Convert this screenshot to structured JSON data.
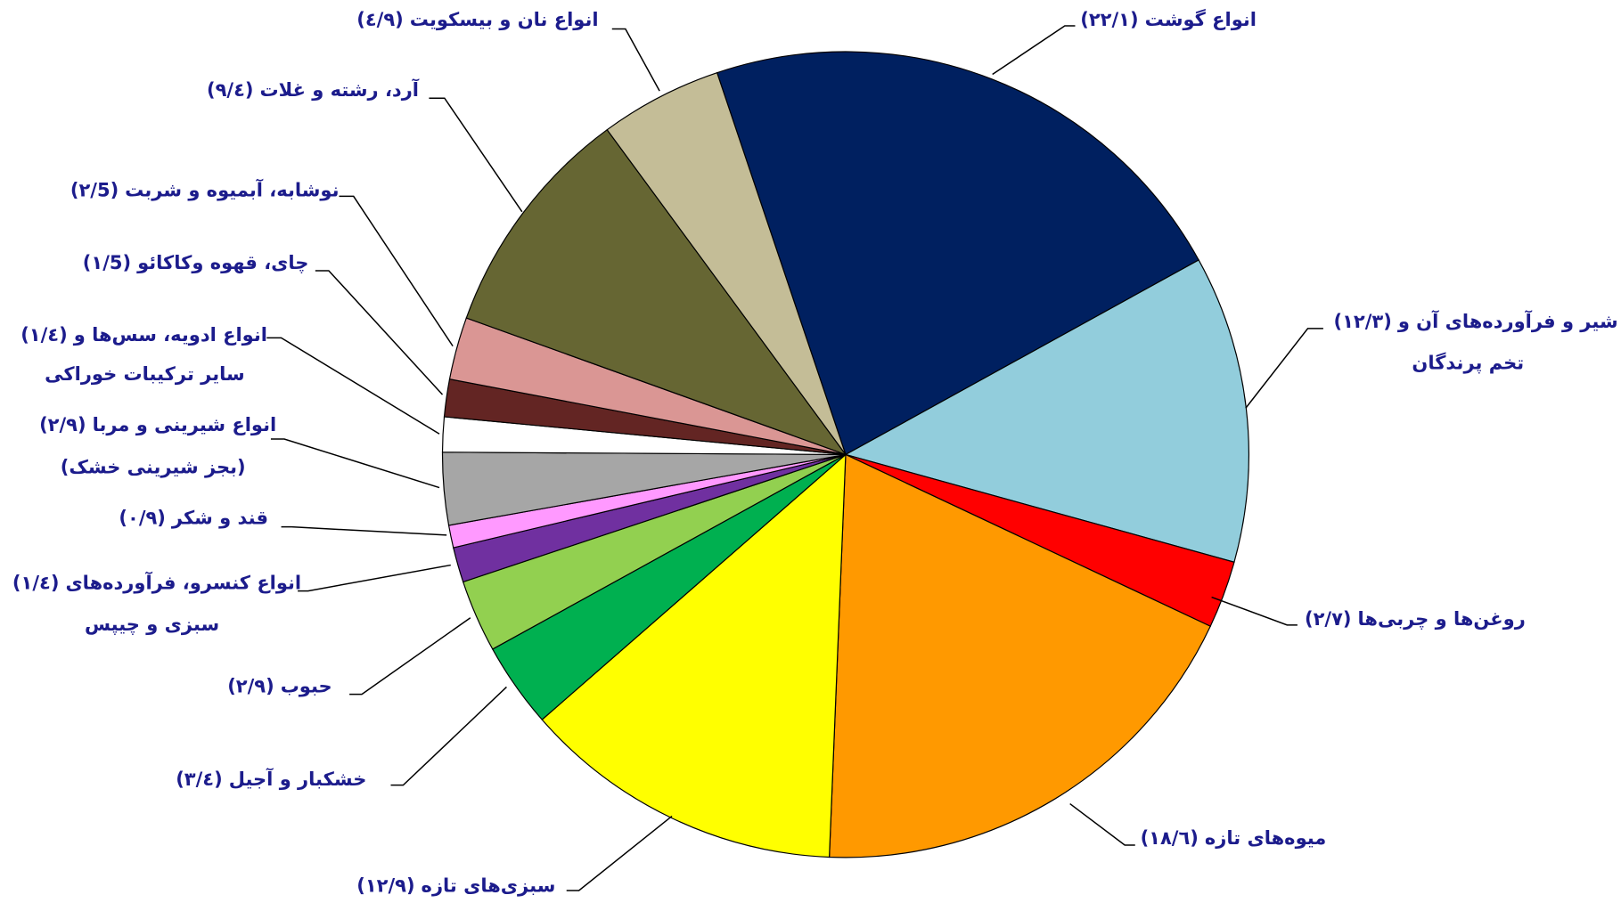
{
  "chart_data": {
    "type": "pie",
    "categories": [
      "انواع گوشت",
      [
        "شیر و فرآورده‌های آن و",
        "تخم پرندگان"
      ],
      "روغن‌ها و چربی‌ها",
      "میوه‌های تازه",
      "سبزی‌های تازه",
      "خشکبار و آجیل",
      "حبوب",
      [
        "انواع کنسرو، فرآورده‌های",
        "سبزی و چیپس"
      ],
      "قند و شکر",
      [
        "انواع شیرینی و مربا",
        "(بجز شیرینی خشک)"
      ],
      [
        "انواع ادویه، سس‌ها و",
        "سایر ترکیبات خوراکی"
      ],
      "چای، قهوه وکاکائو",
      "نوشابه، آبمیوه و شربت",
      "آرد، رشته و غلات",
      "انواع نان و بیسکویت"
    ],
    "values": [
      22.1,
      12.3,
      2.7,
      18.6,
      12.9,
      3.4,
      2.9,
      1.4,
      0.9,
      2.9,
      1.4,
      1.5,
      2.5,
      9.4,
      4.9
    ],
    "value_labels": [
      "(۲۲/۱)",
      "(۱۲/۳)",
      "(۲/۷)",
      "(۱۸/٦)",
      "(۱۲/۹)",
      "(۳/٤)",
      "(۲/۹)",
      "(۱/٤)",
      "(۰/۹)",
      "(۲/۹)",
      "(۱/٤)",
      "(۱/5)",
      "(۲/5)",
      "(۹/٤)",
      "(٤/۹)"
    ],
    "colors": [
      "#002060",
      "#92cddc",
      "#ff0000",
      "#ff9900",
      "#ffff00",
      "#00b050",
      "#92d050",
      "#7030a0",
      "#ff99ff",
      "#a6a6a6",
      "#ffffff",
      "#632523",
      "#da9694",
      "#666633",
      "#c4bd97"
    ]
  }
}
